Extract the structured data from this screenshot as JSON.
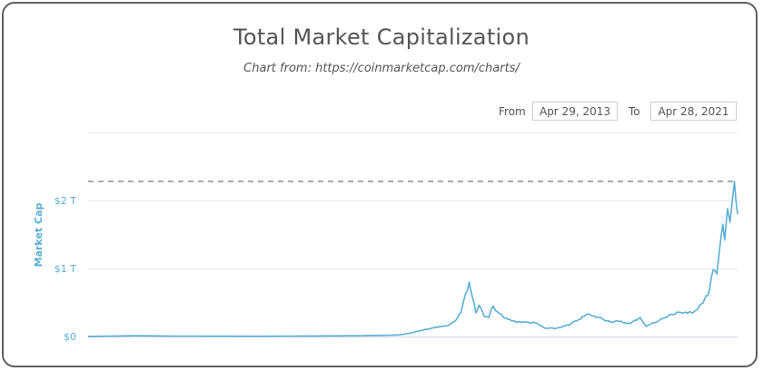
{
  "chart_data": {
    "type": "line",
    "title": "Total Market Capitalization",
    "subtitle": "Chart from: https://coinmarketcap.com/charts/",
    "ylabel": "Market Cap",
    "xlabel": "",
    "range_selector": {
      "from_label": "From",
      "from_value": "Apr 29, 2013",
      "to_label": "To",
      "to_value": "Apr 28, 2021"
    },
    "yticks": [
      {
        "value": 0,
        "label": "$0"
      },
      {
        "value": 1,
        "label": "$1 T"
      },
      {
        "value": 2,
        "label": "$2 T"
      }
    ],
    "ylim": [
      0,
      3
    ],
    "y_unit": "trillion USD",
    "x_range": [
      "2013-04-29",
      "2021-04-28"
    ],
    "reference_line": {
      "value": 2.28,
      "style": "dashed"
    },
    "grid": true,
    "line_color": "#5aafd6",
    "series": [
      {
        "x": [
          "2013-04-29",
          "2013-12-01",
          "2014-06-01",
          "2015-06-01",
          "2016-06-01",
          "2017-01-01",
          "2017-03-01",
          "2017-05-01",
          "2017-06-15",
          "2017-08-01",
          "2017-09-01",
          "2017-10-01",
          "2017-11-01",
          "2017-12-01",
          "2017-12-15",
          "2018-01-07",
          "2018-01-20",
          "2018-02-06",
          "2018-02-20",
          "2018-03-15",
          "2018-04-05",
          "2018-04-25",
          "2018-05-15",
          "2018-06-15",
          "2018-08-01",
          "2018-09-15",
          "2018-11-01",
          "2018-12-15",
          "2019-02-01",
          "2019-04-01",
          "2019-05-15",
          "2019-06-26",
          "2019-07-15",
          "2019-08-15",
          "2019-10-01",
          "2019-11-15",
          "2020-01-01",
          "2020-02-15",
          "2020-03-13",
          "2020-04-15",
          "2020-06-01",
          "2020-08-01",
          "2020-09-15",
          "2020-10-15",
          "2020-11-15",
          "2020-12-15",
          "2021-01-08",
          "2021-01-25",
          "2021-02-21",
          "2021-03-01",
          "2021-03-14",
          "2021-03-25",
          "2021-04-05",
          "2021-04-14",
          "2021-04-20",
          "2021-04-28"
        ],
        "values": [
          0.0015,
          0.012,
          0.007,
          0.004,
          0.01,
          0.018,
          0.025,
          0.06,
          0.1,
          0.13,
          0.15,
          0.16,
          0.22,
          0.35,
          0.55,
          0.8,
          0.6,
          0.35,
          0.46,
          0.3,
          0.28,
          0.45,
          0.36,
          0.27,
          0.22,
          0.21,
          0.2,
          0.12,
          0.12,
          0.17,
          0.25,
          0.33,
          0.3,
          0.28,
          0.22,
          0.22,
          0.19,
          0.28,
          0.15,
          0.2,
          0.27,
          0.36,
          0.34,
          0.37,
          0.48,
          0.6,
          0.98,
          0.92,
          1.65,
          1.42,
          1.88,
          1.68,
          2.02,
          2.28,
          2.02,
          1.8
        ]
      }
    ]
  }
}
